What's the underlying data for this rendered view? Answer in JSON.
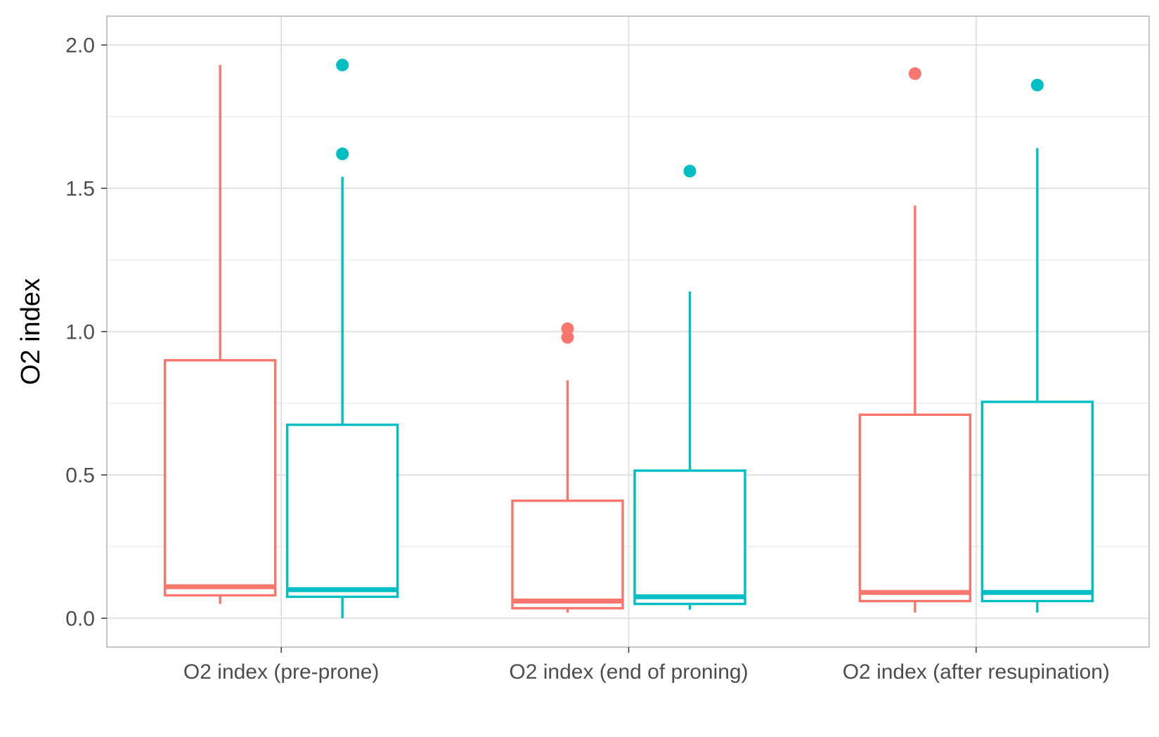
{
  "chart_data": {
    "type": "boxplot",
    "ylabel": "O2 index",
    "xlabel": "",
    "ylim": [
      -0.1,
      2.1
    ],
    "yticks": [
      "0.0",
      "0.5",
      "1.0",
      "1.5",
      "2.0"
    ],
    "ytick_values": [
      0.0,
      0.5,
      1.0,
      1.5,
      2.0
    ],
    "grid": true,
    "legend": "none",
    "categories": [
      "O2 index (pre-prone)",
      "O2 index (end of proning)",
      "O2 index (after resupination)"
    ],
    "series": [
      {
        "color": "#F8766D",
        "boxes": [
          {
            "min": 0.05,
            "q1": 0.08,
            "median": 0.11,
            "q3": 0.9,
            "max": 1.93,
            "outliers": []
          },
          {
            "min": 0.02,
            "q1": 0.035,
            "median": 0.06,
            "q3": 0.41,
            "max": 0.83,
            "outliers": [
              1.01,
              0.98
            ]
          },
          {
            "min": 0.02,
            "q1": 0.06,
            "median": 0.09,
            "q3": 0.71,
            "max": 1.44,
            "outliers": [
              1.9
            ]
          }
        ]
      },
      {
        "color": "#00BFC4",
        "boxes": [
          {
            "min": 0.0,
            "q1": 0.075,
            "median": 0.1,
            "q3": 0.675,
            "max": 1.54,
            "outliers": [
              1.93,
              1.62
            ]
          },
          {
            "min": 0.03,
            "q1": 0.05,
            "median": 0.075,
            "q3": 0.515,
            "max": 1.14,
            "outliers": [
              1.56
            ]
          },
          {
            "min": 0.02,
            "q1": 0.06,
            "median": 0.09,
            "q3": 0.755,
            "max": 1.64,
            "outliers": [
              1.86
            ]
          }
        ]
      }
    ]
  }
}
